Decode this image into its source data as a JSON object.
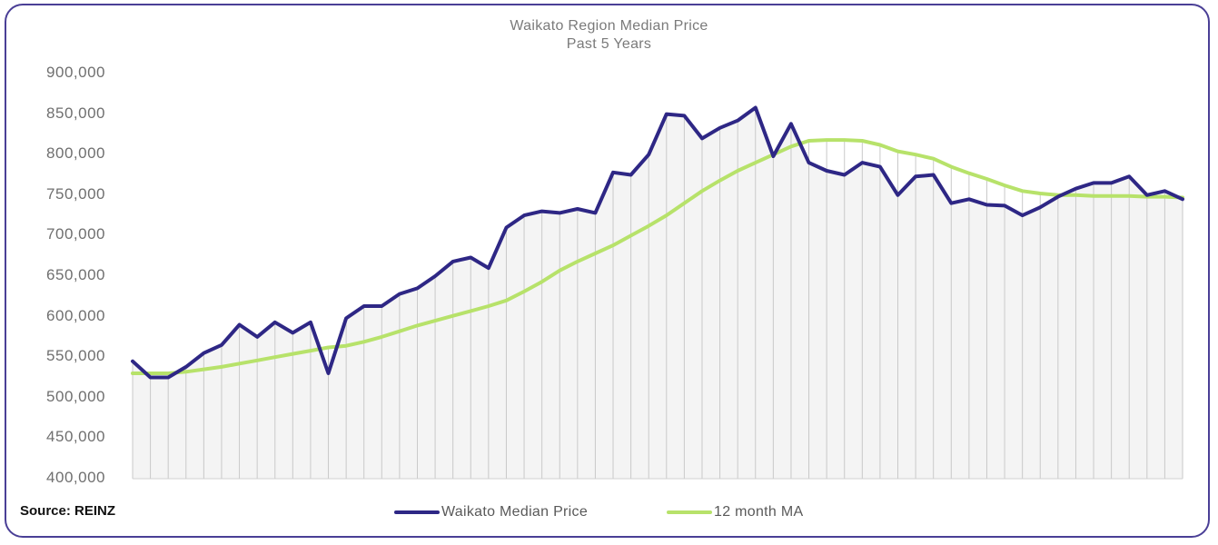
{
  "chart_data": {
    "type": "line",
    "title": "Waikato Region Median Price",
    "subtitle": "Past 5 Years",
    "source": "Source: REINZ",
    "ylim": [
      400000,
      900000
    ],
    "y_ticks": [
      "900,000",
      "850,000",
      "800,000",
      "750,000",
      "700,000",
      "650,000",
      "600,000",
      "550,000",
      "500,000",
      "450,000",
      "400,000"
    ],
    "y_tick_values": [
      900000,
      850000,
      800000,
      750000,
      700000,
      650000,
      600000,
      550000,
      500000,
      450000,
      400000
    ],
    "gridlines": "vertical",
    "legend_position": "bottom",
    "series": [
      {
        "name": "Waikato Median Price",
        "color": "#2e2785",
        "values": [
          545000,
          525000,
          525000,
          538000,
          555000,
          565000,
          590000,
          575000,
          593000,
          580000,
          593000,
          530000,
          598000,
          613000,
          613000,
          628000,
          635000,
          650000,
          668000,
          673000,
          660000,
          710000,
          725000,
          730000,
          728000,
          733000,
          728000,
          778000,
          775000,
          800000,
          850000,
          848000,
          820000,
          833000,
          842000,
          858000,
          798000,
          838000,
          790000,
          780000,
          775000,
          790000,
          785000,
          750000,
          773000,
          775000,
          740000,
          745000,
          738000,
          737000,
          725000,
          735000,
          748000,
          758000,
          765000,
          765000,
          773000,
          750000,
          755000,
          745000
        ]
      },
      {
        "name": "12 month MA",
        "color": "#b7e26a",
        "values": [
          530000,
          530000,
          530000,
          532000,
          535000,
          538000,
          542000,
          546000,
          550000,
          554000,
          558000,
          562000,
          564000,
          569000,
          575000,
          582000,
          589000,
          595000,
          601000,
          607000,
          613000,
          620000,
          631000,
          643000,
          657000,
          668000,
          678000,
          688000,
          700000,
          712000,
          725000,
          740000,
          755000,
          768000,
          780000,
          790000,
          800000,
          810000,
          817000,
          818000,
          818000,
          817000,
          812000,
          804000,
          800000,
          795000,
          785000,
          777000,
          770000,
          762000,
          755000,
          752000,
          750000,
          750000,
          749000,
          749000,
          749000,
          748000,
          748000,
          747000
        ]
      }
    ]
  }
}
